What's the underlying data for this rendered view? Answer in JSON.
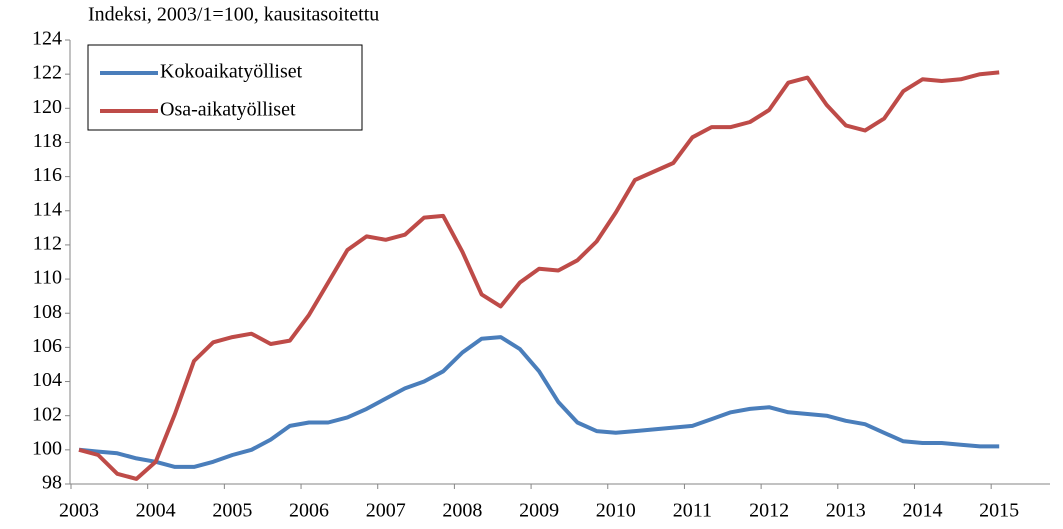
{
  "chart_data": {
    "type": "line",
    "title": "Indeksi, 2003/1=100, kausitasoitettu",
    "categories": [
      "2003",
      null,
      null,
      null,
      "2004",
      null,
      null,
      null,
      "2005",
      null,
      null,
      null,
      "2006",
      null,
      null,
      null,
      "2007",
      null,
      null,
      null,
      "2008",
      null,
      null,
      null,
      "2009",
      null,
      null,
      null,
      "2010",
      null,
      null,
      null,
      "2011",
      null,
      null,
      null,
      "2012",
      null,
      null,
      null,
      "2013",
      null,
      null,
      null,
      "2014",
      null,
      null,
      null,
      "2015"
    ],
    "series": [
      {
        "name": "Kokoaikatyölliset",
        "color": "#4a7ebb",
        "values": [
          100,
          99.9,
          99.8,
          99.5,
          99.3,
          99.0,
          99.0,
          99.3,
          99.7,
          100.0,
          100.6,
          101.4,
          101.6,
          101.6,
          101.9,
          102.4,
          103.0,
          103.6,
          104.0,
          104.6,
          105.7,
          106.5,
          106.6,
          105.9,
          104.6,
          102.8,
          101.6,
          101.1,
          101.0,
          101.1,
          101.2,
          101.3,
          101.4,
          101.8,
          102.2,
          102.4,
          102.5,
          102.2,
          102.1,
          102.0,
          101.7,
          101.5,
          101.0,
          100.5,
          100.4,
          100.4,
          100.3,
          100.2,
          100.2
        ]
      },
      {
        "name": "Osa-aikatyölliset",
        "color": "#be4b48",
        "values": [
          100,
          99.7,
          98.6,
          98.3,
          99.3,
          102.1,
          105.2,
          106.3,
          106.6,
          106.8,
          106.2,
          106.4,
          107.9,
          109.8,
          111.7,
          112.5,
          112.3,
          112.6,
          113.6,
          113.7,
          111.6,
          109.1,
          108.4,
          109.8,
          110.6,
          110.5,
          111.1,
          112.2,
          113.9,
          115.8,
          116.3,
          116.8,
          118.3,
          118.9,
          118.9,
          119.2,
          119.9,
          121.5,
          121.8,
          120.2,
          119.0,
          118.7,
          119.4,
          121.0,
          121.7,
          121.6,
          121.7,
          122.0,
          122.1
        ]
      }
    ],
    "ylim": [
      98,
      124
    ],
    "yticks": [
      98,
      100,
      102,
      104,
      106,
      108,
      110,
      112,
      114,
      116,
      118,
      120,
      122,
      124
    ],
    "grid": false,
    "legend": "top-left"
  }
}
